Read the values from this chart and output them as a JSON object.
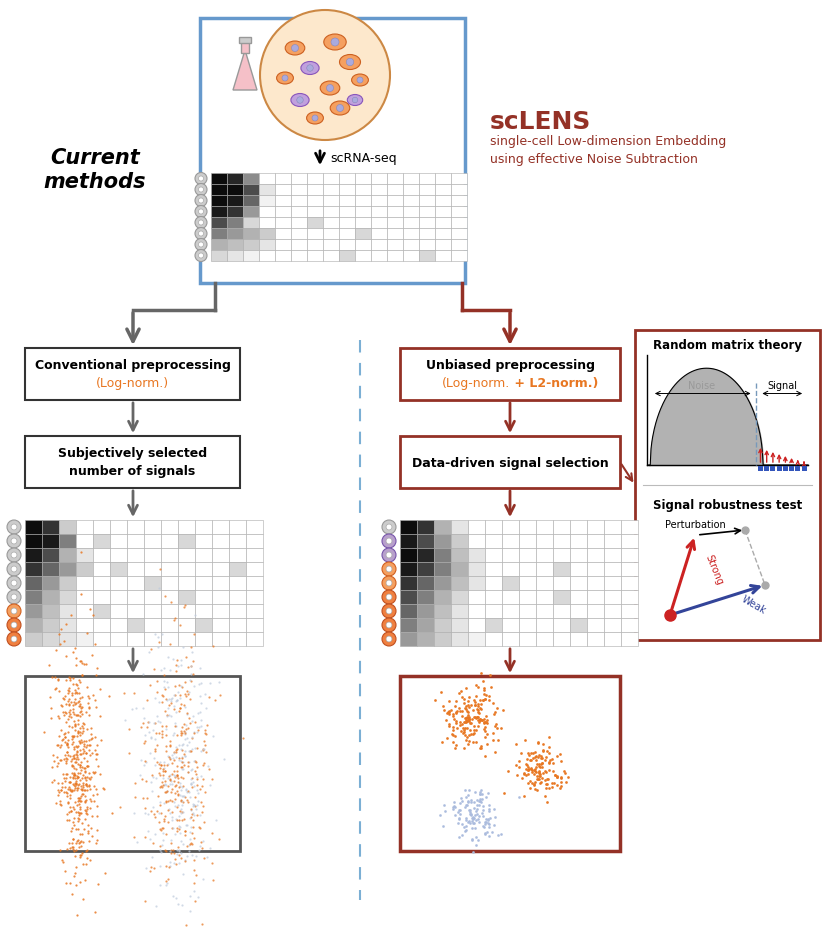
{
  "current_methods_label": "Current\nmethods",
  "scrna_seq_label": "scRNA-seq",
  "sclens_title": "scLENS",
  "sclens_subtitle": "single-cell Low-dimension Embedding\nusing effective Noise Subtraction",
  "box1_left_line1": "Conventional preprocessing",
  "box1_left_line2_pre": "(Log-norm.)",
  "box2_left_line1": "Subjectively selected",
  "box2_left_line2": "number of signals",
  "box1_right_line1": "Unbiased preprocessing",
  "box1_right_line2_pre": "(Log-norm.",
  "box1_right_line2_bold": " + L2-norm.)",
  "box2_right_text": "Data-driven signal selection",
  "rmt_title": "Random matrix theory",
  "rmt_noise": "Noise",
  "rmt_signal": "Signal",
  "srt_title": "Signal robustness test",
  "srt_perturbation": "Perturbation",
  "srt_strong": "Strong",
  "srt_weak": "Weak",
  "gray_arrow": "#666666",
  "dark_red": "#943126",
  "orange": "#E87722",
  "light_blue": "#AABBD0",
  "blue_scatter": "#9BAEC8",
  "dashed_blue": "#7BAFD4",
  "rmt_border": "#943126",
  "bg": "#FFFFFF"
}
